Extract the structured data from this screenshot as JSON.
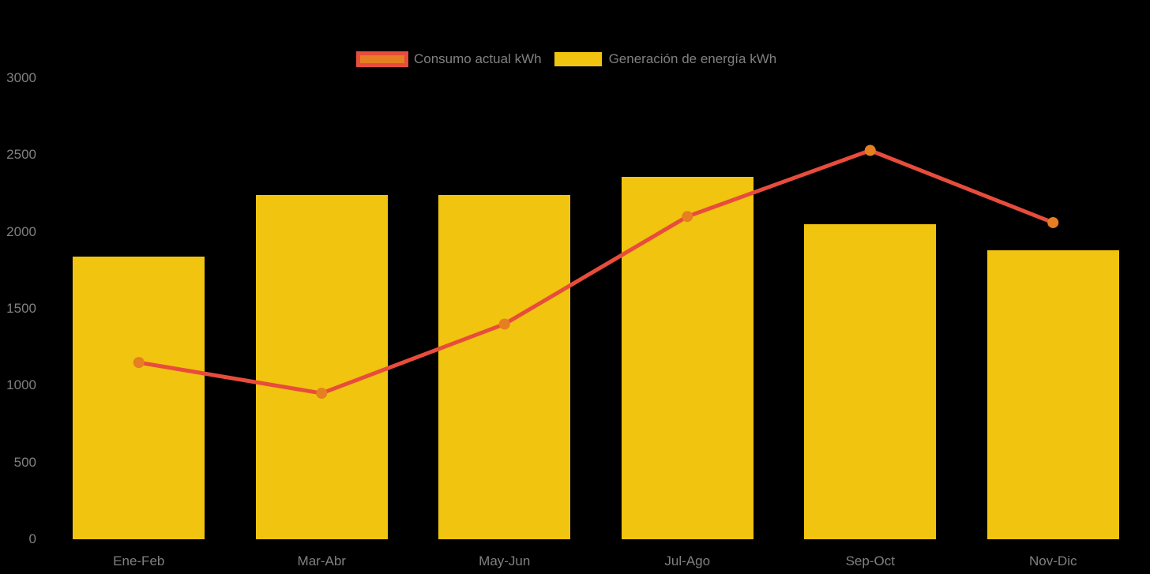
{
  "page": {
    "background": "#000000",
    "text_color": "#808080"
  },
  "legend": {
    "position": "top",
    "items": [
      {
        "label": "Consumo actual kWh",
        "series_type": "line",
        "swatch_fill": "#e67e22",
        "swatch_border": "#e74c3c"
      },
      {
        "label": "Generación de energía kWh",
        "series_type": "bar",
        "swatch_fill": "#f1c40f"
      }
    ]
  },
  "chart_data": {
    "type": "combo",
    "categories": [
      "Ene-Feb",
      "Mar-Abr",
      "May-Jun",
      "Jul-Ago",
      "Sep-Oct",
      "Nov-Dic"
    ],
    "series": [
      {
        "name": "Consumo actual kWh",
        "type": "line",
        "color": "#e74c3c",
        "marker_color": "#e67e22",
        "values": [
          1150,
          950,
          1400,
          2100,
          2530,
          2060
        ]
      },
      {
        "name": "Generación de energía kWh",
        "type": "bar",
        "color": "#f1c40f",
        "values": [
          1840,
          2240,
          2240,
          2360,
          2050,
          1880
        ]
      }
    ],
    "title": "",
    "xlabel": "",
    "ylabel": "",
    "ylim": [
      0,
      3000
    ],
    "yticks": [
      0,
      500,
      1000,
      1500,
      2000,
      2500,
      3000
    ],
    "grid": false,
    "legend_position": "top",
    "axis_text_color": "#808080",
    "background_color": "#000000"
  }
}
